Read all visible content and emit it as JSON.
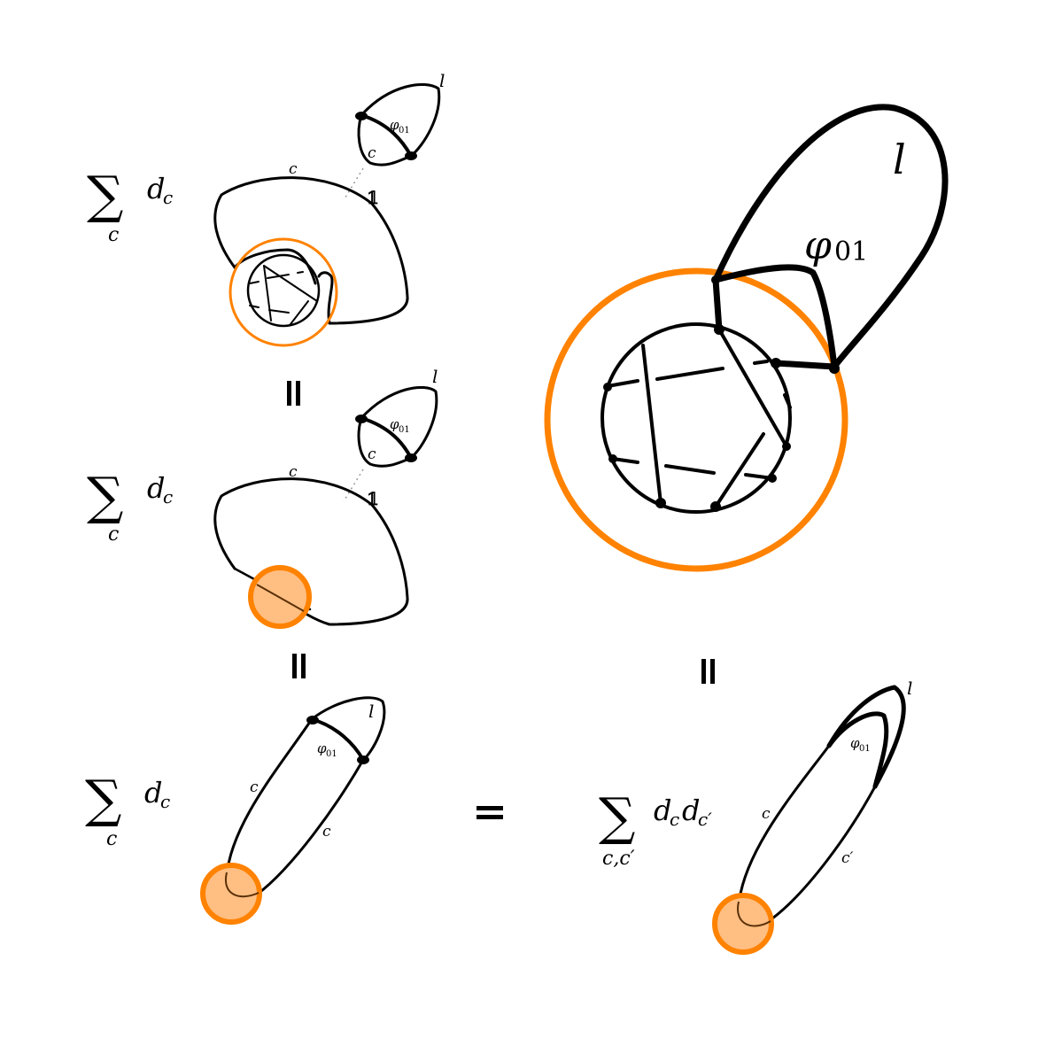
{
  "colors": {
    "ink": "#000000",
    "ring": "#ff8200",
    "disk_fill": "#ffbe82",
    "inner_strand": "#8a4a10",
    "dotted_guide": "#999999"
  },
  "symbols": {
    "sum": "∑",
    "sub_c": "c",
    "sub_cc": "c,c′",
    "d": "d",
    "d_sub": "c",
    "d_sub_prime": "c′",
    "equals": "=",
    "rot_equals": "="
  },
  "labels": {
    "l": "l",
    "c": "c",
    "c_prime": "c′",
    "phi": "φ",
    "phi_sub": "01"
  },
  "marks": {
    "one": "𝟙"
  }
}
